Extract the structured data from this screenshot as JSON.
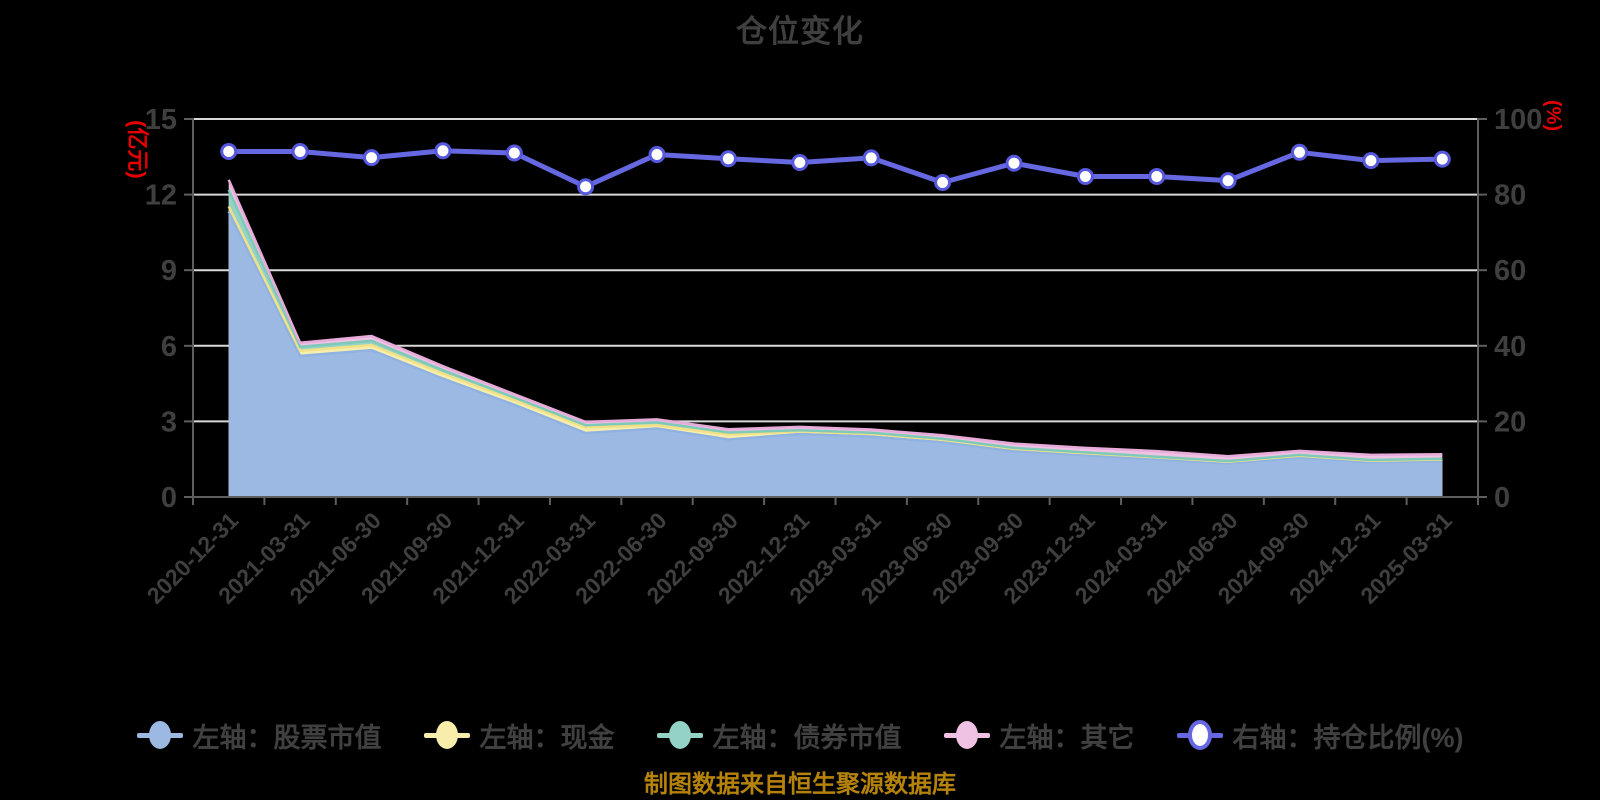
{
  "page": {
    "background": "#000000"
  },
  "chart_data": {
    "type": "area",
    "title": "仓位变化",
    "source_note": "制图数据来自恒生聚源数据库",
    "grid": true,
    "legend_position": "bottom",
    "categories": [
      "2020-12-31",
      "2021-03-31",
      "2021-06-30",
      "2021-09-30",
      "2021-12-31",
      "2022-03-31",
      "2022-06-30",
      "2022-09-30",
      "2022-12-31",
      "2023-03-31",
      "2023-06-30",
      "2023-09-30",
      "2023-12-31",
      "2024-03-31",
      "2024-06-30",
      "2024-09-30",
      "2024-12-31",
      "2025-03-31"
    ],
    "left_axis": {
      "name": "(亿元)",
      "ticks": [
        0,
        3,
        6,
        9,
        12,
        15
      ],
      "ylim": [
        0,
        15
      ]
    },
    "right_axis": {
      "name": "(%)",
      "ticks": [
        0,
        20,
        40,
        60,
        80,
        100
      ],
      "ylim": [
        0,
        100
      ]
    },
    "series": [
      {
        "key": "stock-value",
        "name": "左轴：股票市值",
        "type": "area",
        "axis": "left",
        "stack": true,
        "color": "#9CB9E4",
        "edge_color": "#8FB2E0",
        "legend_marker": "filled-dot",
        "values": [
          11.33,
          5.6,
          5.83,
          4.7,
          3.66,
          2.54,
          2.72,
          2.28,
          2.5,
          2.4,
          2.17,
          1.82,
          1.66,
          1.5,
          1.33,
          1.57,
          1.38,
          1.43
        ]
      },
      {
        "key": "cash",
        "name": "左轴：现金",
        "type": "area",
        "axis": "left",
        "stack": true,
        "color": "#F8EDAA",
        "edge_color": "#F0E188",
        "legend_marker": "filled-dot",
        "values": [
          0.2,
          0.2,
          0.2,
          0.2,
          0.18,
          0.22,
          0.13,
          0.2,
          0.1,
          0.1,
          0.1,
          0.09,
          0.08,
          0.07,
          0.07,
          0.07,
          0.06,
          0.06
        ]
      },
      {
        "key": "bond-value",
        "name": "左轴：债券市值",
        "type": "area",
        "axis": "left",
        "stack": true,
        "color": "#93D2C5",
        "edge_color": "#7FC9B9",
        "legend_marker": "filled-dot",
        "values": [
          0.66,
          0.16,
          0.17,
          0.13,
          0.11,
          0.09,
          0.11,
          0.08,
          0.05,
          0.05,
          0.04,
          0.04,
          0.03,
          0.03,
          0.03,
          0.03,
          0.03,
          0.03
        ]
      },
      {
        "key": "other",
        "name": "左轴：其它",
        "type": "area",
        "axis": "left",
        "stack": true,
        "color": "#EFC2E4",
        "edge_color": "#E7ABD9",
        "legend_marker": "filled-dot",
        "values": [
          0.4,
          0.16,
          0.19,
          0.16,
          0.13,
          0.13,
          0.12,
          0.13,
          0.13,
          0.13,
          0.14,
          0.17,
          0.18,
          0.22,
          0.19,
          0.16,
          0.2,
          0.18
        ]
      },
      {
        "key": "position-ratio",
        "name": "右轴：持仓比例(%)",
        "type": "line",
        "axis": "right",
        "stack": false,
        "color": "#6668E2",
        "marker_ring_color": "#5658DD",
        "marker_fill": "#FFFFFF",
        "legend_marker": "ring-dot",
        "values": [
          91.4,
          91.4,
          89.8,
          91.6,
          91.0,
          82.1,
          90.6,
          89.5,
          88.5,
          89.7,
          83.2,
          88.3,
          84.8,
          84.8,
          83.7,
          91.2,
          89.0,
          89.4
        ]
      }
    ],
    "style_colors": {
      "grid_line": "#D9D9D9",
      "axis_line": "#5E5E5E",
      "tick_label": "#3F3F3F",
      "axis_name": "#E60000",
      "title": "#3F3F3F",
      "legend_text": "#404040",
      "source_note": "#B5830B"
    }
  }
}
